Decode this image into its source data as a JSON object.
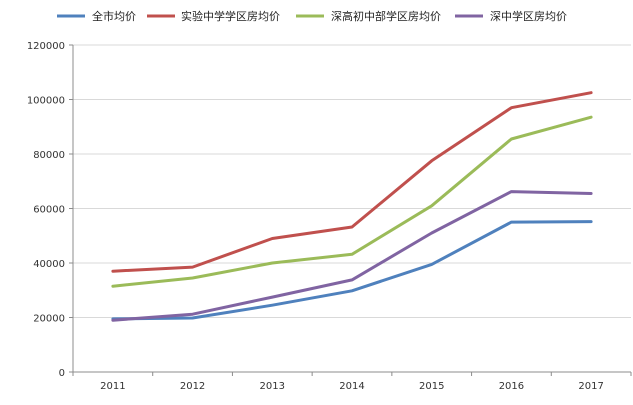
{
  "chart_data": {
    "type": "line",
    "title": "",
    "xlabel": "",
    "ylabel": "",
    "categories": [
      "2011",
      "2012",
      "2013",
      "2014",
      "2015",
      "2016",
      "2017"
    ],
    "ylim": [
      0,
      120000
    ],
    "yticks": [
      0,
      20000,
      40000,
      60000,
      80000,
      100000,
      120000
    ],
    "grid": "horizontal",
    "legend_position": "top",
    "series": [
      {
        "name": "全市均价",
        "color": "#4F81BD",
        "values": [
          19500,
          19800,
          24500,
          29800,
          39500,
          55000,
          55200
        ]
      },
      {
        "name": "实验中学学区房均价",
        "color": "#C0504D",
        "values": [
          37000,
          38500,
          49000,
          53200,
          77500,
          97000,
          102500
        ]
      },
      {
        "name": "深高初中部学区房均价",
        "color": "#9BBB59",
        "values": [
          31500,
          34500,
          40000,
          43200,
          61000,
          85500,
          93500
        ]
      },
      {
        "name": "深中学区房均价",
        "color": "#8064A2",
        "values": [
          19000,
          21200,
          27500,
          33800,
          51000,
          66200,
          65500
        ]
      }
    ]
  }
}
